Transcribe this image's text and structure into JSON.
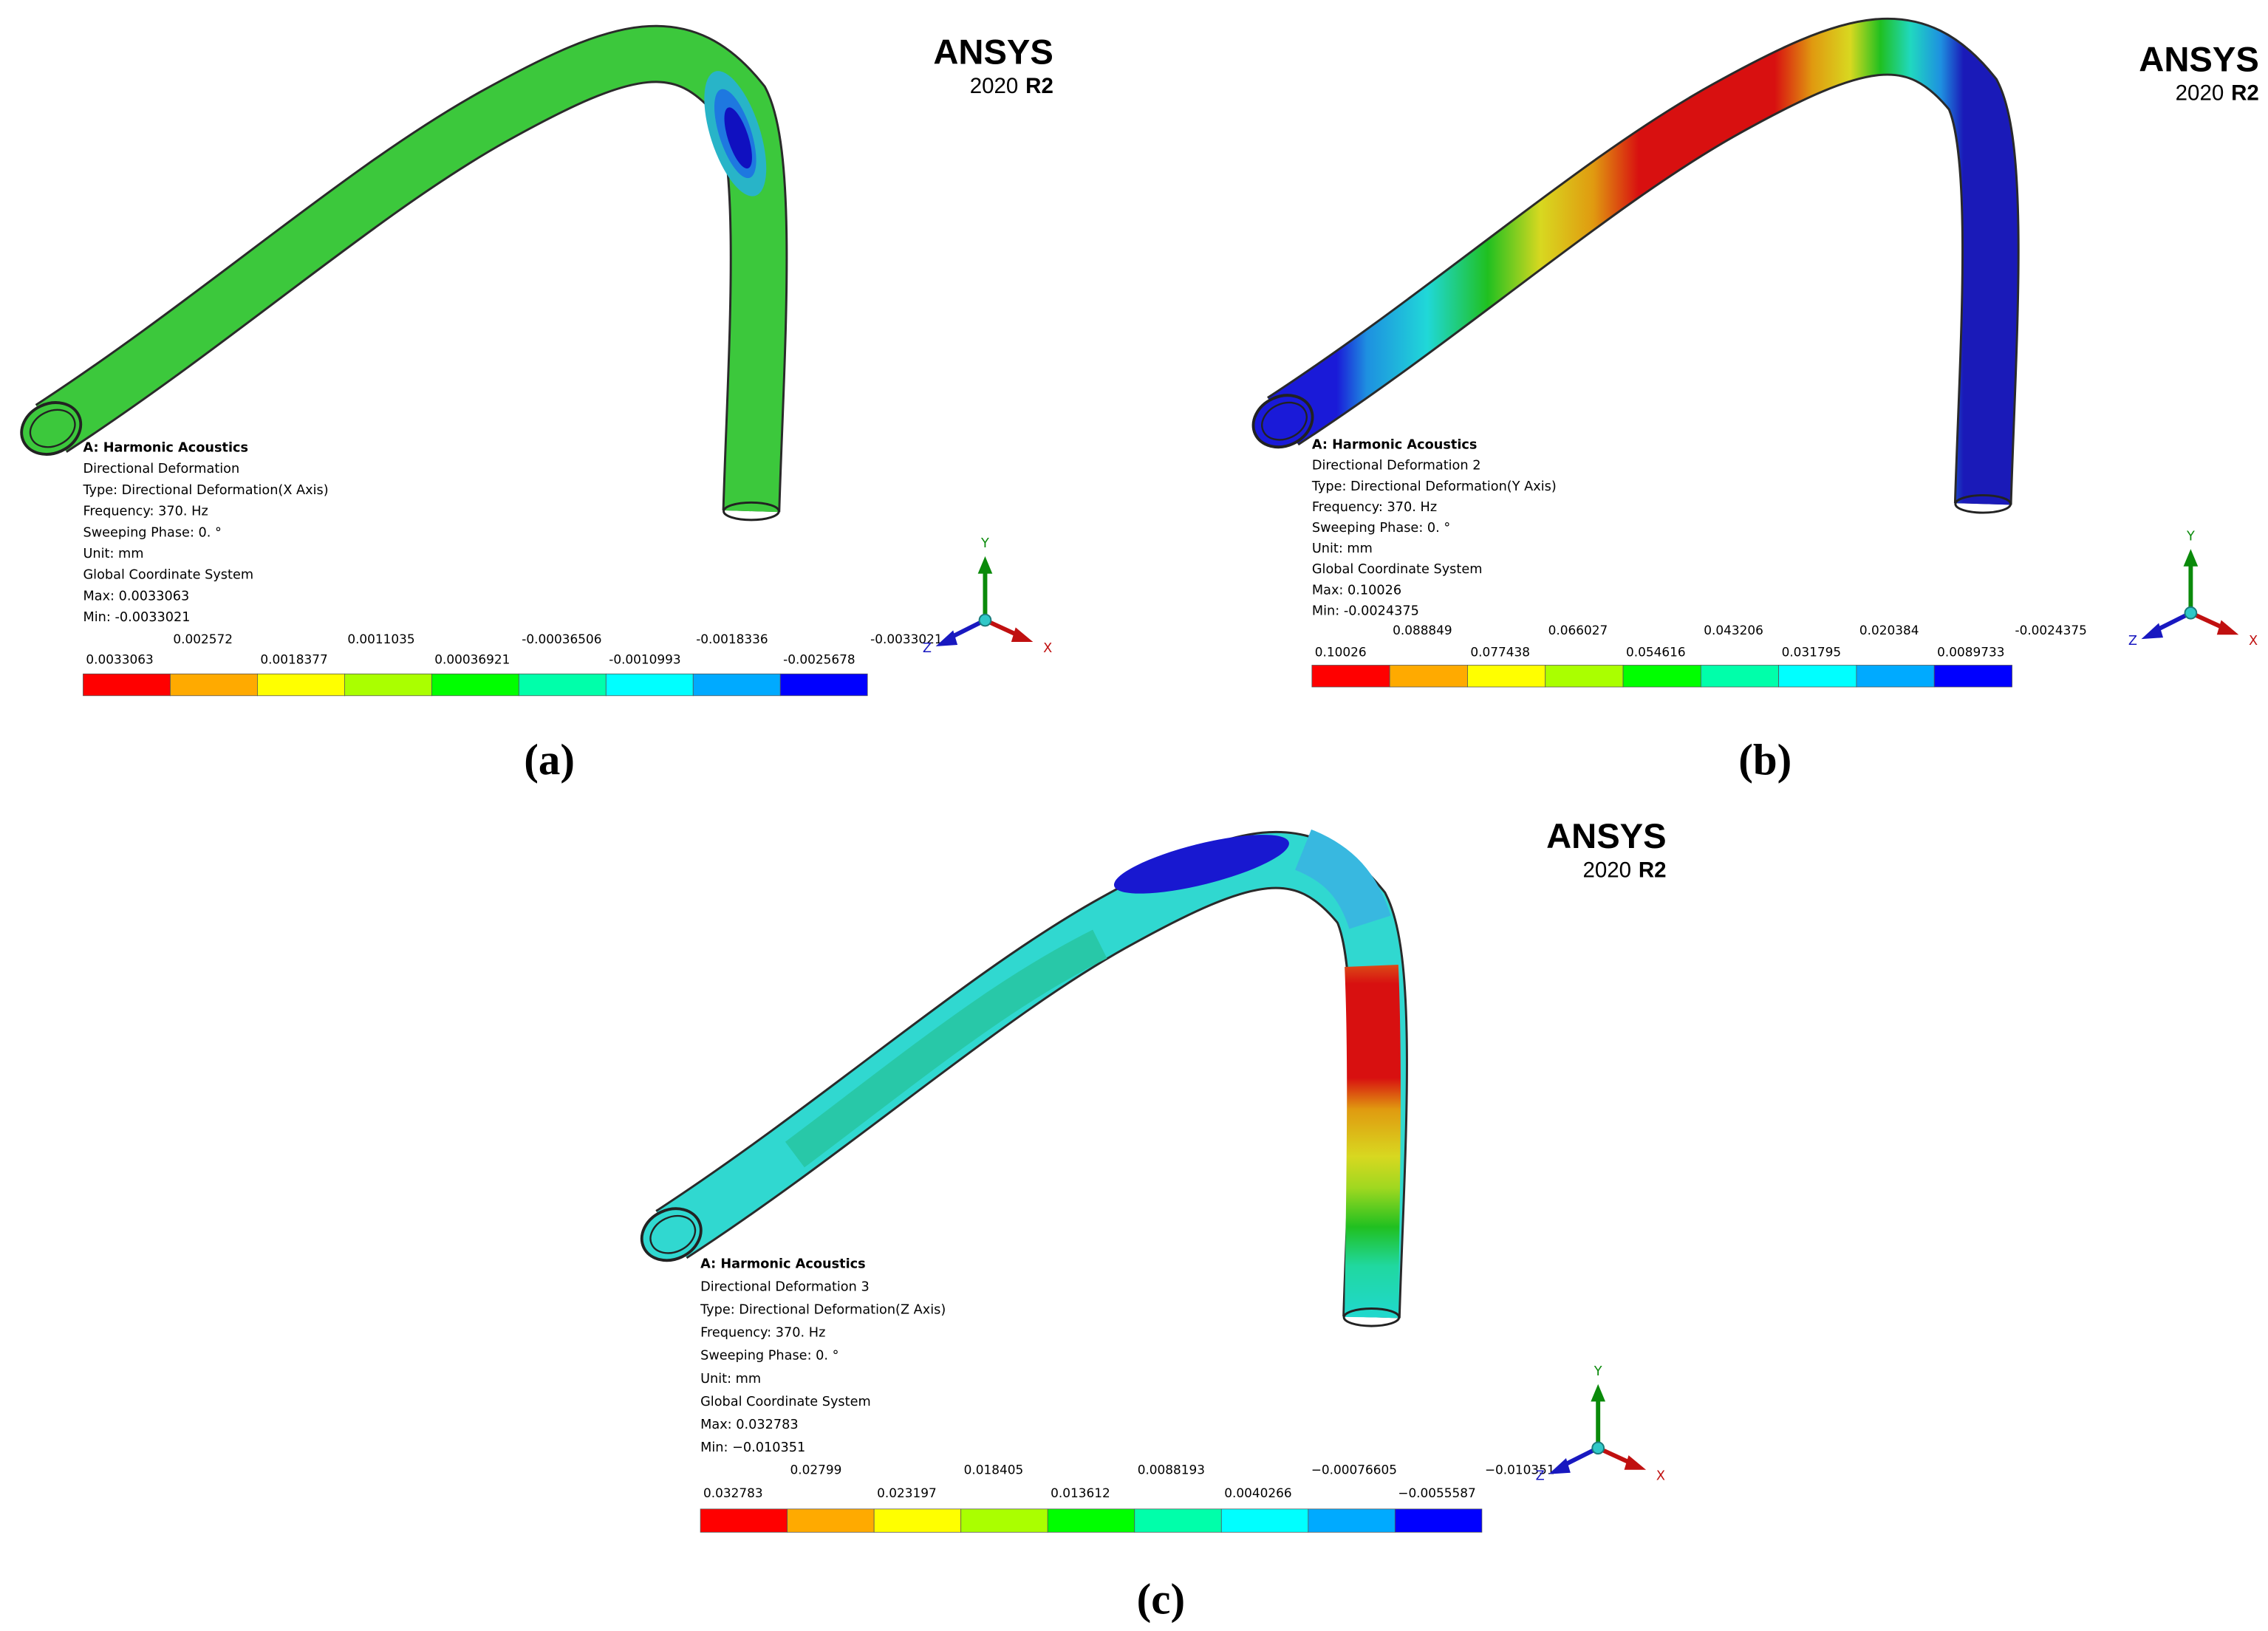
{
  "panels": [
    {
      "logo": {
        "name": "ANSYS",
        "version": "2020",
        "release": "R2"
      },
      "info": [
        "A: Harmonic Acoustics",
        "Directional Deformation",
        "Type: Directional Deformation(X Axis)",
        "Frequency: 370. Hz",
        "Sweeping Phase: 0. °",
        "Unit: mm",
        "Global Coordinate System",
        "Max: 0.0033063",
        "Min: -0.0033021"
      ],
      "legend": {
        "top": [
          "0.002572",
          "0.0011035",
          "-0.00036506",
          "-0.0018336",
          "-0.0033021"
        ],
        "bottom": [
          "0.0033063",
          "0.0018377",
          "0.00036921",
          "-0.0010993",
          "-0.0025678"
        ]
      },
      "axes": {
        "x": "X",
        "y": "Y",
        "z": "Z"
      },
      "caption": "(a)"
    },
    {
      "logo": {
        "name": "ANSYS",
        "version": "2020",
        "release": "R2"
      },
      "info": [
        "A: Harmonic Acoustics",
        "Directional Deformation 2",
        "Type: Directional Deformation(Y Axis)",
        "Frequency: 370. Hz",
        "Sweeping Phase: 0. °",
        "Unit: mm",
        "Global Coordinate System",
        "Max: 0.10026",
        "Min: -0.0024375"
      ],
      "legend": {
        "top": [
          "0.088849",
          "0.066027",
          "0.043206",
          "0.020384",
          "-0.0024375"
        ],
        "bottom": [
          "0.10026",
          "0.077438",
          "0.054616",
          "0.031795",
          "0.0089733"
        ]
      },
      "axes": {
        "x": "X",
        "y": "Y",
        "z": "Z"
      },
      "caption": "(b)"
    },
    {
      "logo": {
        "name": "ANSYS",
        "version": "2020",
        "release": "R2"
      },
      "info": [
        "A: Harmonic Acoustics",
        "Directional Deformation 3",
        "Type: Directional Deformation(Z Axis)",
        "Frequency: 370. Hz",
        "Sweeping Phase: 0. °",
        "Unit: mm",
        "Global Coordinate System",
        "Max: 0.032783",
        "Min: −0.010351"
      ],
      "legend": {
        "top": [
          "0.02799",
          "0.018405",
          "0.0088193",
          "−0.00076605",
          "−0.010351"
        ],
        "bottom": [
          "0.032783",
          "0.023197",
          "0.013612",
          "0.0040266",
          "−0.0055587"
        ]
      },
      "axes": {
        "x": "X",
        "y": "Y",
        "z": "Z"
      },
      "caption": "(c)"
    }
  ]
}
